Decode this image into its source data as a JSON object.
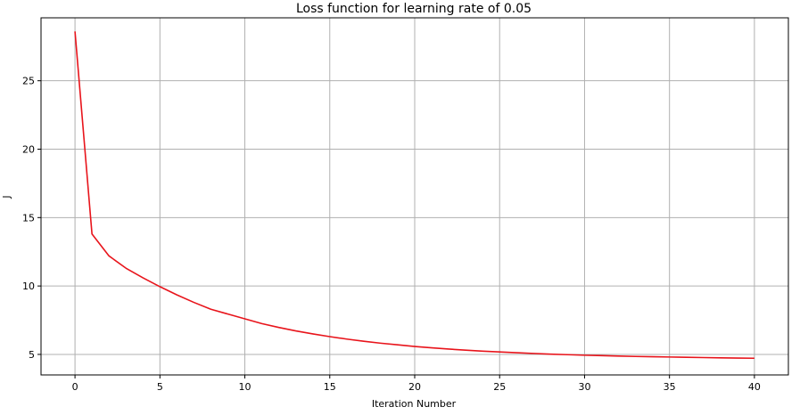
{
  "chart_data": {
    "type": "line",
    "title": "Loss function for learning rate of 0.05",
    "xlabel": "Iteration Number",
    "ylabel": "J",
    "xlim": [
      -2,
      42
    ],
    "ylim": [
      3.5,
      29.6
    ],
    "xticks": [
      0,
      5,
      10,
      15,
      20,
      25,
      30,
      35,
      40
    ],
    "yticks": [
      5,
      10,
      15,
      20,
      25
    ],
    "grid": true,
    "series": [
      {
        "color": "#e8141b",
        "x": [
          0,
          1,
          2,
          3,
          4,
          5,
          6,
          7,
          8,
          9,
          10,
          11,
          12,
          13,
          14,
          15,
          16,
          17,
          18,
          19,
          20,
          21,
          22,
          23,
          24,
          25,
          26,
          27,
          28,
          29,
          30,
          31,
          32,
          33,
          34,
          35,
          36,
          37,
          38,
          39,
          40
        ],
        "y": [
          28.6,
          13.8,
          12.2,
          11.3,
          10.6,
          9.95,
          9.35,
          8.8,
          8.3,
          7.95,
          7.6,
          7.25,
          6.97,
          6.72,
          6.5,
          6.3,
          6.12,
          5.96,
          5.82,
          5.7,
          5.58,
          5.48,
          5.39,
          5.31,
          5.24,
          5.18,
          5.12,
          5.07,
          5.02,
          4.98,
          4.94,
          4.91,
          4.88,
          4.85,
          4.83,
          4.81,
          4.79,
          4.77,
          4.75,
          4.73,
          4.72
        ]
      }
    ]
  }
}
